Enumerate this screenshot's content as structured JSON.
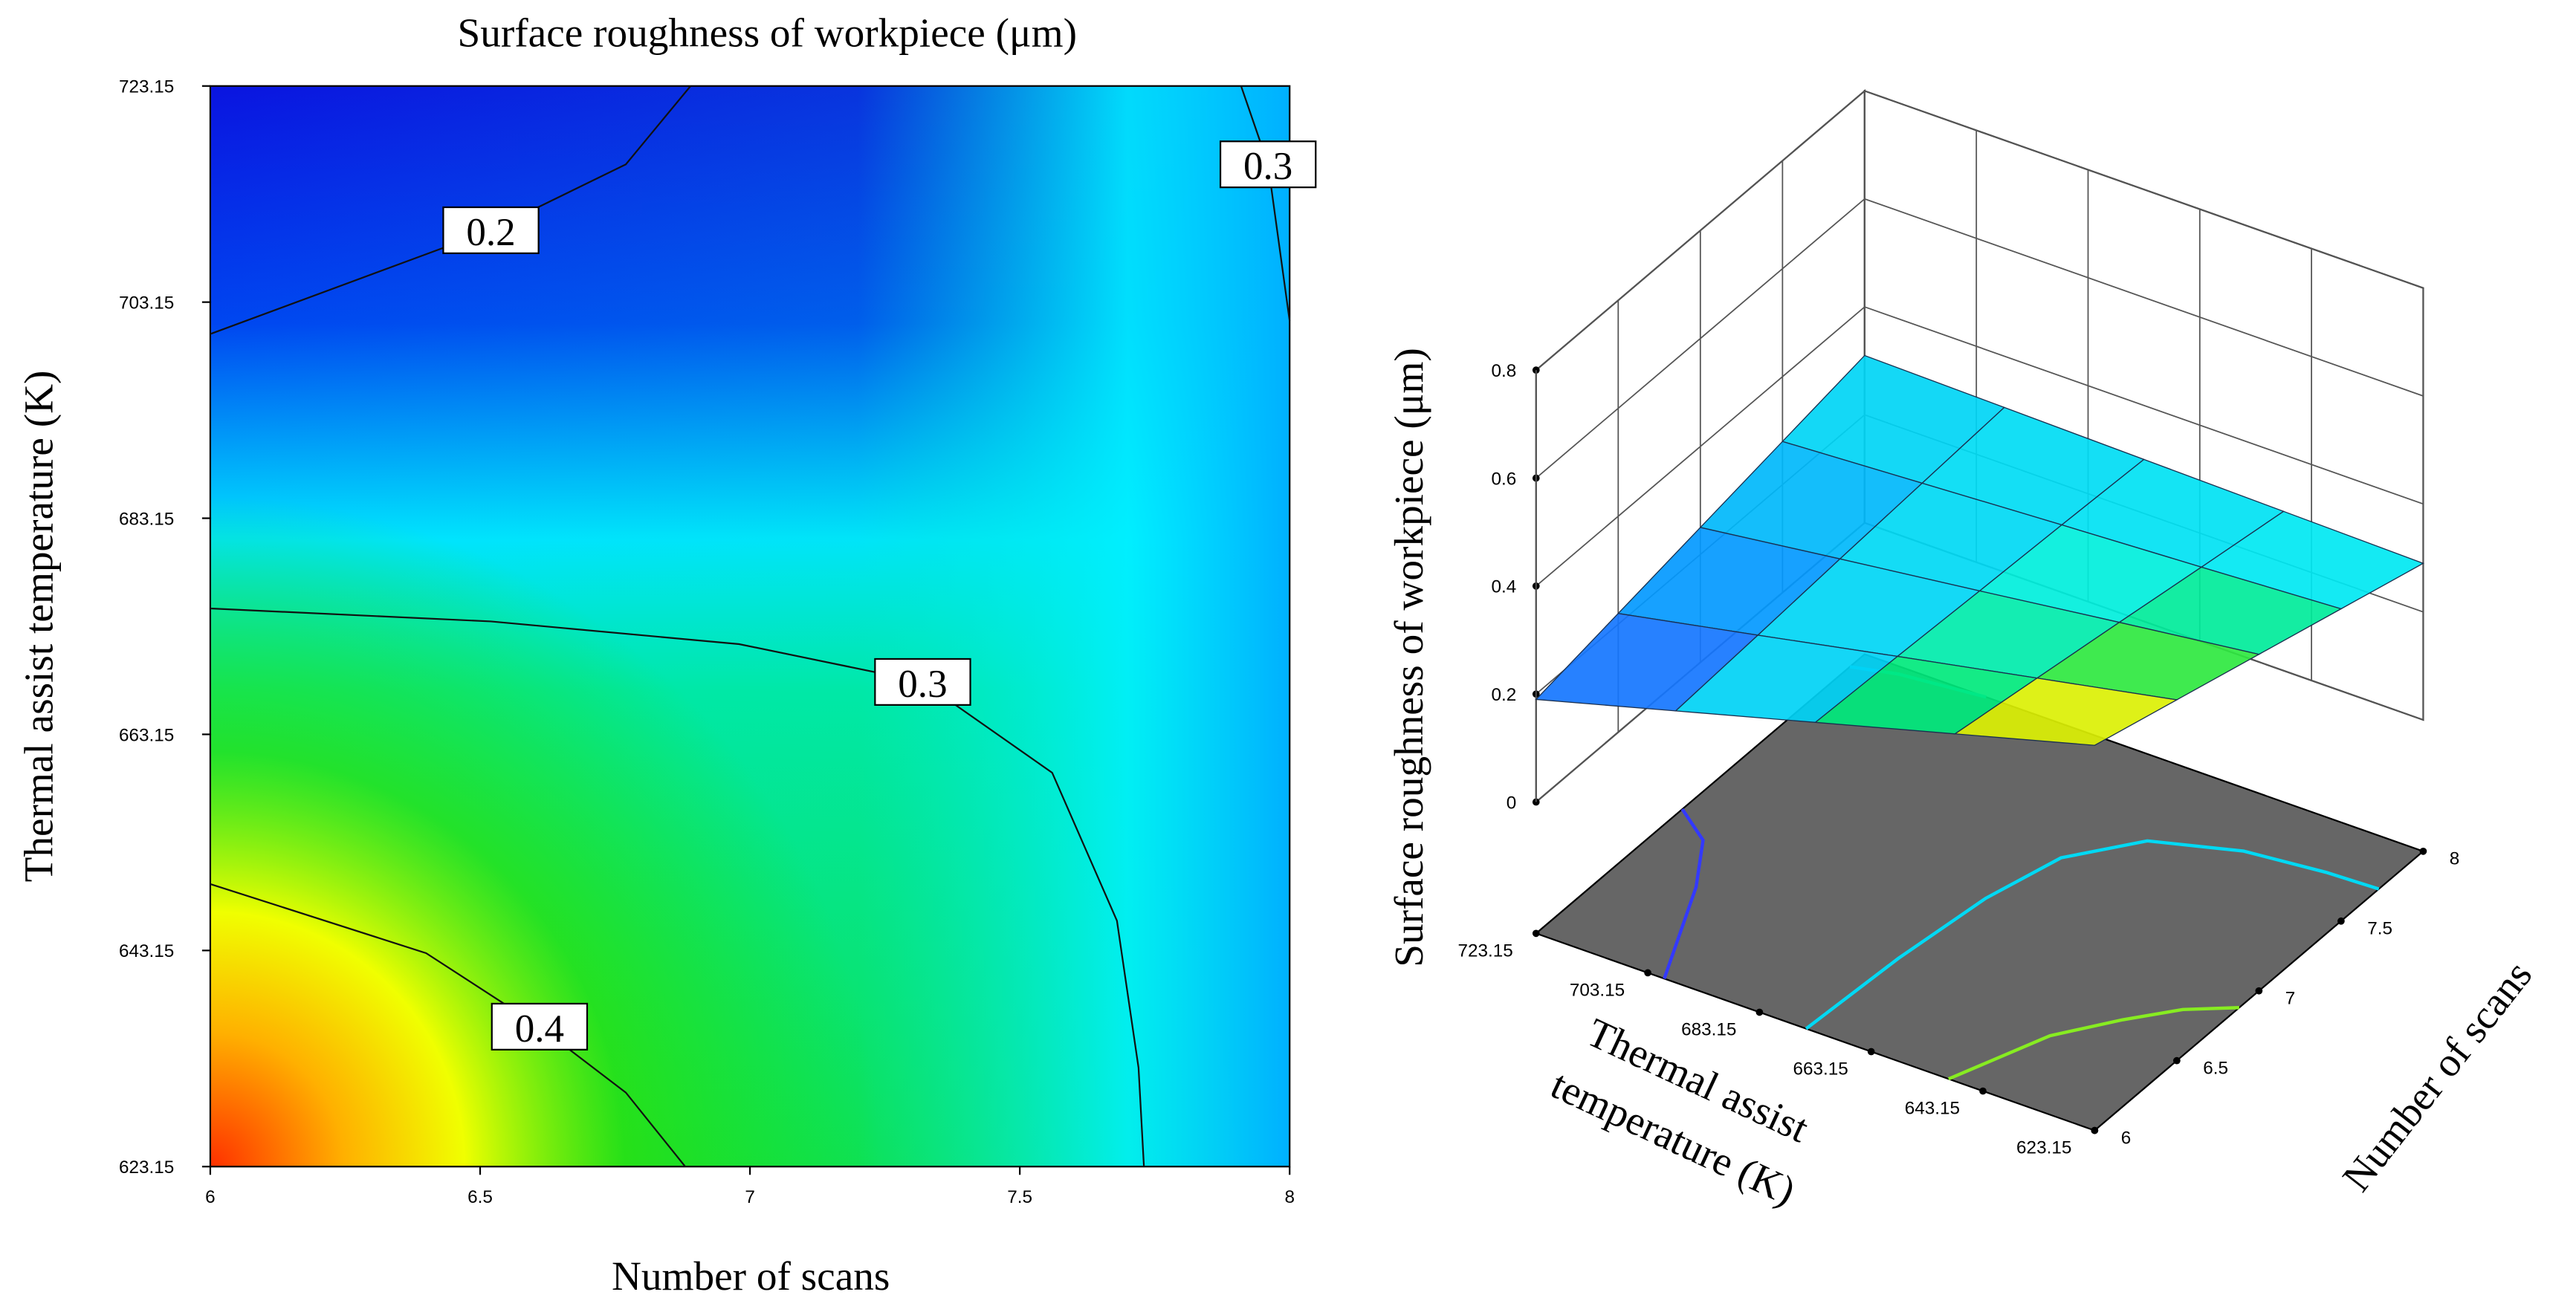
{
  "chart_data": [
    {
      "type": "contour",
      "title": "Surface roughness of workpiece (μm)",
      "xlabel": "Number of scans",
      "ylabel": "Thermal assist temperature (K)",
      "xlim": [
        6,
        8
      ],
      "ylim": [
        623.15,
        723.15
      ],
      "xticks": [
        6,
        6.5,
        7,
        7.5,
        8
      ],
      "yticks": [
        623.15,
        643.15,
        663.15,
        683.15,
        703.15,
        723.15
      ],
      "contours": [
        {
          "level": 0.2,
          "x": [
            6,
            6.52,
            6.77,
            6.89
          ],
          "y": [
            700.2,
            709.8,
            715.9,
            723.15
          ]
        },
        {
          "level": 0.3,
          "x": [
            7.91,
            7.96,
            8
          ],
          "y": [
            723.15,
            715.9,
            701.4
          ]
        },
        {
          "level": 0.3,
          "x": [
            6,
            6.52,
            6.98,
            7.32,
            7.56,
            7.68,
            7.72,
            7.73
          ],
          "y": [
            674.8,
            673.6,
            671.5,
            668,
            659.6,
            645.9,
            632.3,
            623.15
          ]
        },
        {
          "level": 0.4,
          "x": [
            6,
            6.4,
            6.61,
            6.77,
            6.88
          ],
          "y": [
            649.3,
            642.9,
            636.1,
            630,
            623.15
          ]
        }
      ]
    },
    {
      "type": "surface3d",
      "zlabel": "Surface roughness of workpiece (μm)",
      "xlabel": [
        "Thermal assist",
        "temperature (K)"
      ],
      "ylabel": "Number of scans",
      "x": [
        623.15,
        648.15,
        673.15,
        698.15,
        723.15
      ],
      "y": [
        6,
        6.5,
        7,
        7.5,
        8
      ],
      "z": [
        [
          0.47,
          0.425,
          0.38,
          0.335,
          0.29
        ],
        [
          0.4,
          0.374,
          0.348,
          0.321,
          0.295
        ],
        [
          0.33,
          0.323,
          0.315,
          0.308,
          0.3
        ],
        [
          0.26,
          0.271,
          0.283,
          0.294,
          0.305
        ],
        [
          0.19,
          0.22,
          0.25,
          0.28,
          0.31
        ]
      ],
      "xlim": [
        623.15,
        723.15
      ],
      "ylim": [
        6,
        8
      ],
      "zlim": [
        0,
        0.8
      ],
      "xticks": [
        623.15,
        643.15,
        663.15,
        683.15,
        703.15,
        723.15
      ],
      "yticks": [
        6,
        6.5,
        7,
        7.5,
        8
      ],
      "zticks": [
        0,
        0.2,
        0.4,
        0.6,
        0.8
      ]
    }
  ]
}
